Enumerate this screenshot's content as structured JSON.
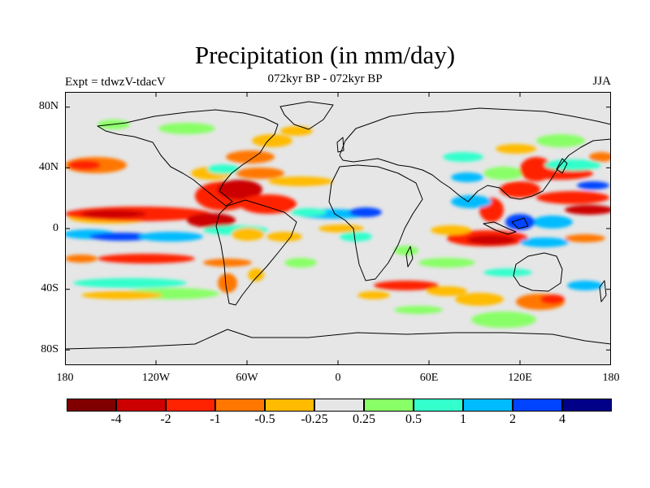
{
  "title": "Precipitation (in mm/day)",
  "subtitle": "072kyr BP - 072kyr BP",
  "expt_label": "Expt = tdwzV-tdacV",
  "season": "JJA",
  "map": {
    "lat_ticks": [
      "80N",
      "40N",
      "0",
      "40S",
      "80S"
    ],
    "lon_ticks": [
      "180",
      "120W",
      "60W",
      "0",
      "60E",
      "120E",
      "180"
    ]
  },
  "colorbar": {
    "colors": [
      "#800000",
      "#cc0000",
      "#ff2200",
      "#ff7700",
      "#ffbb00",
      "#e6e6e6",
      "#88ff66",
      "#33ffcc",
      "#00bbff",
      "#0044ff",
      "#000088"
    ],
    "labels": [
      "-4",
      "-2",
      "-1",
      "-0.5",
      "-0.25",
      "0.25",
      "0.5",
      "1",
      "2",
      "4"
    ]
  }
}
